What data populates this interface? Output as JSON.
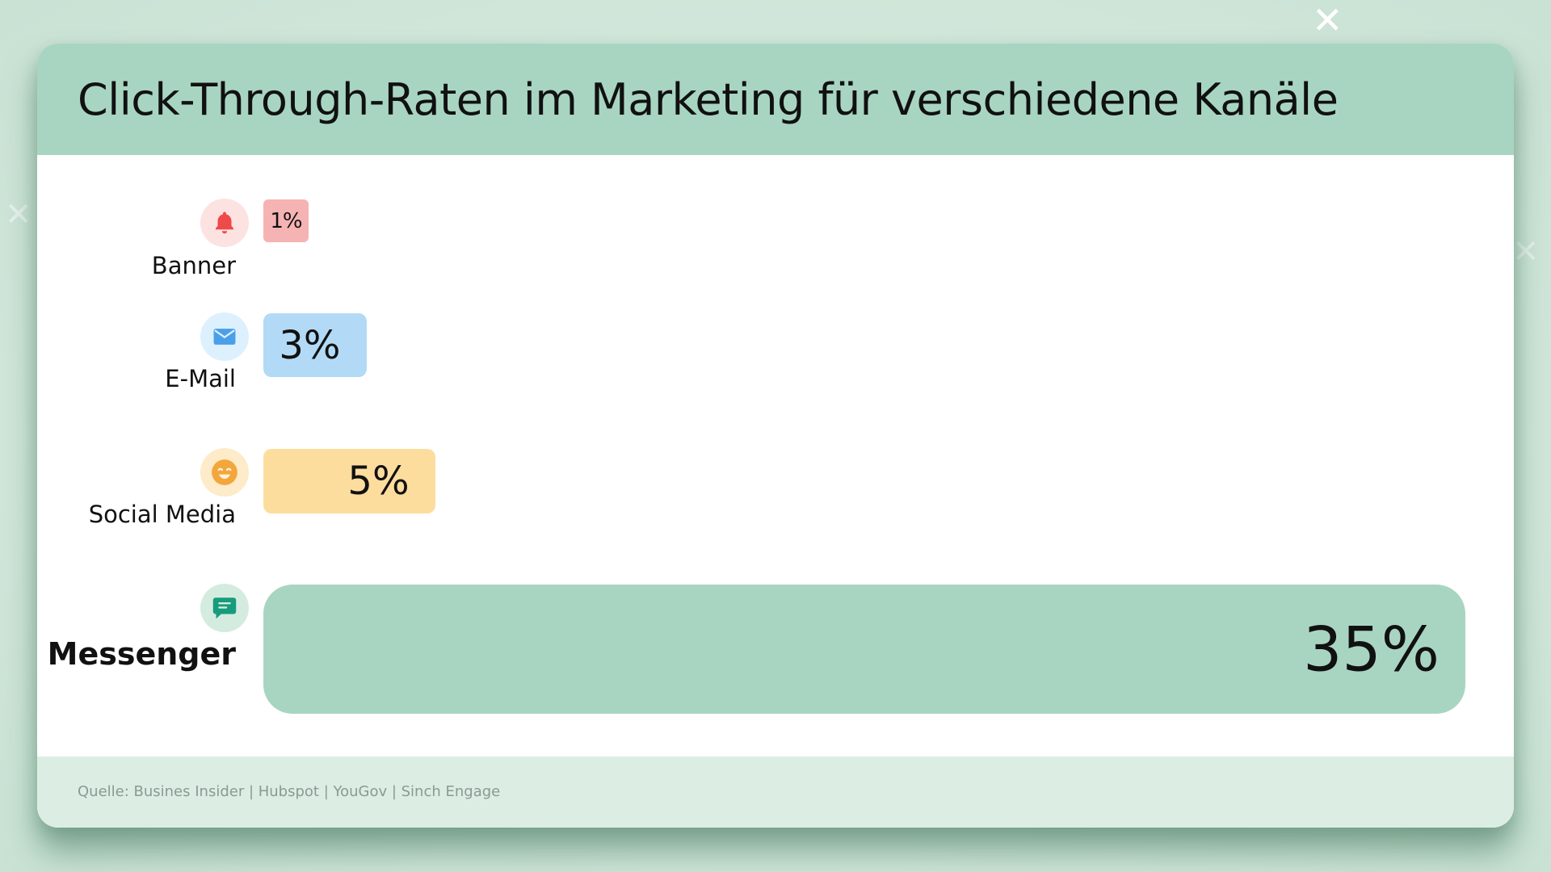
{
  "chart_data": {
    "type": "bar",
    "orientation": "horizontal",
    "title": "Click-Through-Raten im Marketing für verschiedene Kanäle",
    "source": "Quelle: Busines Insider | Hubspot | YouGov | Sinch Engage",
    "max_value": 35,
    "categories": [
      "Banner",
      "E-Mail",
      "Social Media",
      "Messenger"
    ],
    "values": [
      1,
      3,
      5,
      35
    ],
    "value_labels": [
      "1%",
      "3%",
      "5%",
      "35%"
    ],
    "icons": [
      "bell-icon",
      "mail-icon",
      "smile-icon",
      "chat-icon"
    ],
    "colors": {
      "bars": [
        "#f6b3b3",
        "#b2daf7",
        "#fddd9e",
        "#a8d5c2"
      ],
      "icon_bg": [
        "#fde2e2",
        "#ddf0fd",
        "#fdebc9",
        "#d4ecdf"
      ],
      "icon_fg": [
        "#ee4a4a",
        "#4aa0e8",
        "#f3a63b",
        "#169c7c"
      ],
      "header": "#a8d5c2",
      "footer": "#dceee4"
    }
  }
}
